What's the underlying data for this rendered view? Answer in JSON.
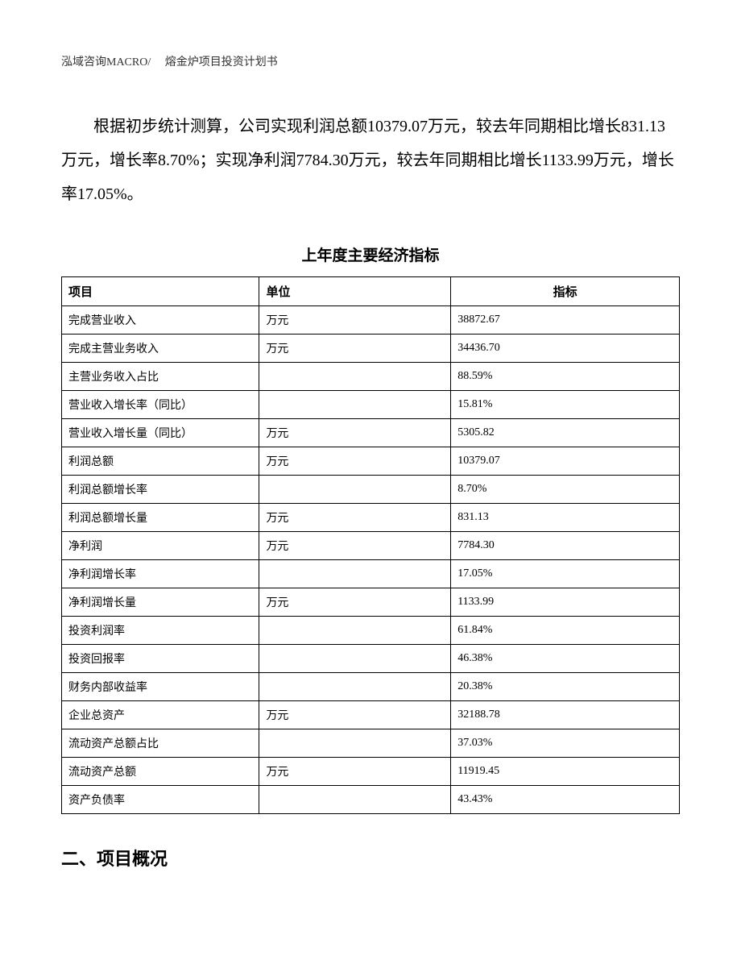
{
  "header": "泓域咨询MACRO/　 熔金炉项目投资计划书",
  "paragraph": "根据初步统计测算，公司实现利润总额10379.07万元，较去年同期相比增长831.13万元，增长率8.70%；实现净利润7784.30万元，较去年同期相比增长1133.99万元，增长率17.05%。",
  "table": {
    "title": "上年度主要经济指标",
    "columns": [
      "项目",
      "单位",
      "指标"
    ],
    "rows": [
      [
        "完成营业收入",
        "万元",
        "38872.67"
      ],
      [
        "完成主营业务收入",
        "万元",
        "34436.70"
      ],
      [
        "主营业务收入占比",
        "",
        "88.59%"
      ],
      [
        "营业收入增长率（同比）",
        "",
        "15.81%"
      ],
      [
        "营业收入增长量（同比）",
        "万元",
        "5305.82"
      ],
      [
        "利润总额",
        "万元",
        "10379.07"
      ],
      [
        "利润总额增长率",
        "",
        "8.70%"
      ],
      [
        "利润总额增长量",
        "万元",
        "831.13"
      ],
      [
        "净利润",
        "万元",
        "7784.30"
      ],
      [
        "净利润增长率",
        "",
        "17.05%"
      ],
      [
        "净利润增长量",
        "万元",
        "1133.99"
      ],
      [
        "投资利润率",
        "",
        "61.84%"
      ],
      [
        "投资回报率",
        "",
        "46.38%"
      ],
      [
        "财务内部收益率",
        "",
        "20.38%"
      ],
      [
        "企业总资产",
        "万元",
        "32188.78"
      ],
      [
        "流动资产总额占比",
        "",
        "37.03%"
      ],
      [
        "流动资产总额",
        "万元",
        "11919.45"
      ],
      [
        "资产负债率",
        "",
        "43.43%"
      ]
    ]
  },
  "section_heading": "二、项目概况"
}
